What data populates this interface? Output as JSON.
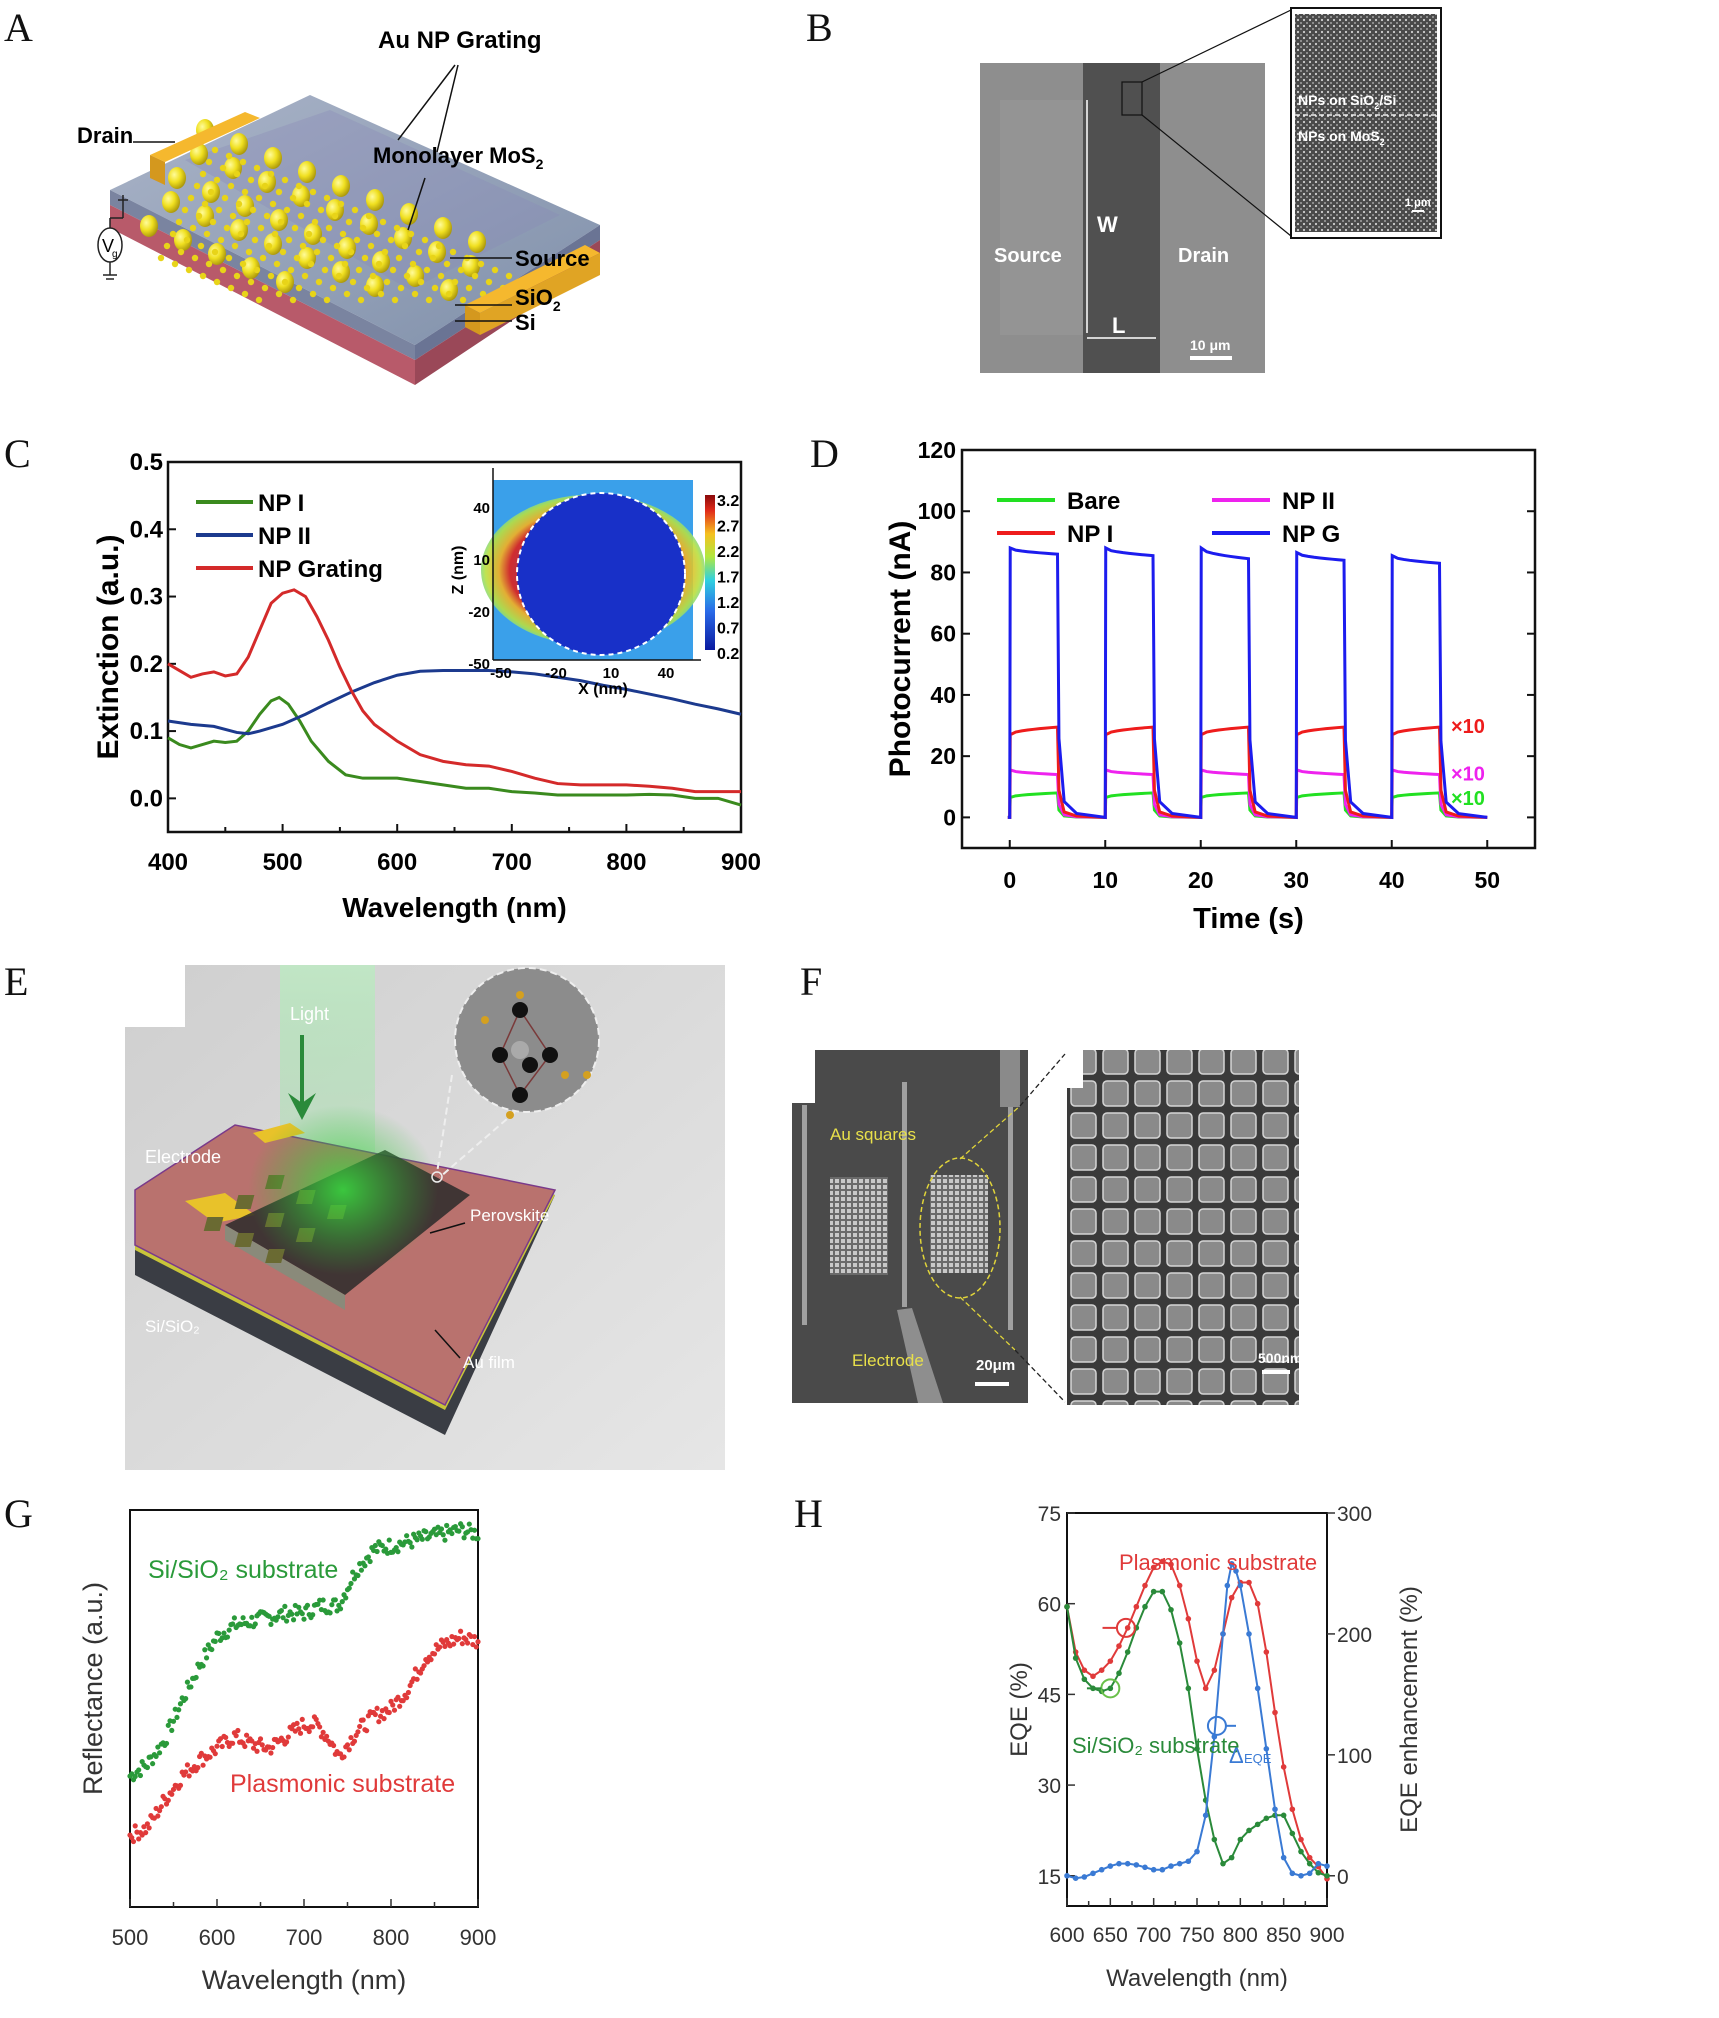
{
  "panels": {
    "A": {
      "letter": "A",
      "labels": {
        "grating": "Au NP Grating",
        "drain": "Drain",
        "monolayer": "Monolayer MoS",
        "monolayer_sub": "2",
        "source": "Source",
        "sio2": "SiO",
        "sio2_sub": "2",
        "si": "Si",
        "vg": "V",
        "vg_sub": "g"
      }
    },
    "B": {
      "letter": "B",
      "labels": {
        "source": "Source",
        "drain": "Drain",
        "w": "W",
        "l": "L",
        "scale": "10 μm",
        "inset_top": "NPs on SiO",
        "inset_top_sub": "2",
        "inset_top_tail": "/Si",
        "inset_bottom": "NPs on MoS",
        "inset_bottom_sub": "2",
        "inset_scale": "1 μm"
      }
    },
    "C": {
      "letter": "C"
    },
    "D": {
      "letter": "D"
    },
    "E": {
      "letter": "E",
      "labels": {
        "light": "Light",
        "electrode": "Electrode",
        "perovskite": "Perovskite",
        "substrate": "Si/SiO₂",
        "au_film": "Au film"
      }
    },
    "F": {
      "letter": "F",
      "labels": {
        "au_squares": "Au squares",
        "electrode": "Electrode",
        "scale_left": "20μm",
        "scale_right": "500nm"
      }
    },
    "G": {
      "letter": "G"
    },
    "H": {
      "letter": "H"
    }
  },
  "chart_data": [
    {
      "id": "C",
      "type": "line",
      "title": "",
      "xlabel": "Wavelength (nm)",
      "ylabel": "Extinction (a.u.)",
      "xlim": [
        400,
        900
      ],
      "ylim": [
        -0.05,
        0.5
      ],
      "xticks": [
        400,
        500,
        600,
        700,
        800,
        900
      ],
      "yticks": [
        0.0,
        0.1,
        0.2,
        0.3,
        0.4,
        0.5
      ],
      "ytick_labels": [
        "0.0",
        "0.1",
        "0.2",
        "0.3",
        "0.4",
        "0.5"
      ],
      "legend": "top-left",
      "series": [
        {
          "name": "NP I",
          "color": "#3a8a1e",
          "x": [
            400,
            410,
            420,
            430,
            440,
            450,
            460,
            470,
            480,
            490,
            497,
            505,
            515,
            525,
            540,
            555,
            570,
            585,
            600,
            620,
            640,
            660,
            680,
            700,
            720,
            740,
            760,
            780,
            800,
            820,
            840,
            860,
            880,
            900
          ],
          "y": [
            0.09,
            0.08,
            0.075,
            0.08,
            0.085,
            0.083,
            0.085,
            0.1,
            0.125,
            0.145,
            0.15,
            0.14,
            0.115,
            0.085,
            0.055,
            0.035,
            0.03,
            0.03,
            0.03,
            0.025,
            0.02,
            0.015,
            0.015,
            0.01,
            0.008,
            0.005,
            0.005,
            0.005,
            0.005,
            0.006,
            0.005,
            0.0,
            0.0,
            -0.01
          ]
        },
        {
          "name": "NP II",
          "color": "#1c3a8e",
          "x": [
            400,
            420,
            440,
            460,
            470,
            480,
            500,
            520,
            540,
            560,
            580,
            600,
            620,
            640,
            660,
            680,
            700,
            720,
            740,
            760,
            780,
            800,
            820,
            840,
            860,
            880,
            900
          ],
          "y": [
            0.115,
            0.11,
            0.107,
            0.098,
            0.096,
            0.1,
            0.11,
            0.125,
            0.142,
            0.158,
            0.172,
            0.183,
            0.189,
            0.19,
            0.19,
            0.19,
            0.188,
            0.185,
            0.18,
            0.175,
            0.168,
            0.162,
            0.155,
            0.148,
            0.14,
            0.133,
            0.125
          ]
        },
        {
          "name": "NP Grating",
          "color": "#d42a2a",
          "x": [
            400,
            410,
            420,
            430,
            440,
            450,
            460,
            470,
            480,
            490,
            500,
            510,
            520,
            530,
            540,
            550,
            560,
            570,
            580,
            600,
            620,
            640,
            660,
            680,
            700,
            720,
            740,
            760,
            780,
            800,
            820,
            840,
            860,
            880,
            900
          ],
          "y": [
            0.2,
            0.19,
            0.18,
            0.185,
            0.188,
            0.182,
            0.185,
            0.21,
            0.25,
            0.29,
            0.305,
            0.31,
            0.3,
            0.27,
            0.235,
            0.195,
            0.16,
            0.13,
            0.11,
            0.085,
            0.065,
            0.055,
            0.05,
            0.048,
            0.04,
            0.03,
            0.022,
            0.02,
            0.02,
            0.02,
            0.018,
            0.015,
            0.01,
            0.01,
            0.01
          ]
        }
      ],
      "inset": {
        "type": "heatmap",
        "xlabel": "X (nm)",
        "ylabel": "Z (nm)",
        "xticks": [
          "-50",
          "-20",
          "10",
          "40"
        ],
        "yticks": [
          "40",
          "10",
          "-20",
          "-50"
        ],
        "colorbar_ticks": [
          "3.2",
          "2.7",
          "2.2",
          "1.7",
          "1.2",
          "0.7",
          "0.2"
        ],
        "colorbar_range": [
          0.2,
          3.2
        ]
      }
    },
    {
      "id": "D",
      "type": "line",
      "title": "",
      "xlabel": "Time (s)",
      "ylabel": "Photocurrent (nA)",
      "xlim": [
        -5,
        55
      ],
      "ylim": [
        -10,
        120
      ],
      "xticks": [
        0,
        10,
        20,
        30,
        40,
        50
      ],
      "yticks": [
        0,
        20,
        40,
        60,
        80,
        100,
        120
      ],
      "legend": "top",
      "on_periods": [
        [
          0,
          5
        ],
        [
          10,
          15
        ],
        [
          20,
          25
        ],
        [
          30,
          35
        ],
        [
          40,
          45
        ]
      ],
      "series": [
        {
          "name": "Bare",
          "color": "#22e022",
          "on_level_start": 6.5,
          "on_level_end": 8,
          "annotation": "×10"
        },
        {
          "name": "NP II",
          "color": "#ee22ee",
          "on_level_start": 15.5,
          "on_level_end": 14,
          "annotation": "×10"
        },
        {
          "name": "NP I",
          "color": "#ee1c1c",
          "on_level_start": 27,
          "on_level_end": 29.5,
          "annotation": "×10"
        },
        {
          "name": "NP G",
          "color": "#1c1cee",
          "on_level_start": [
            88,
            88,
            88,
            86.5,
            85.5
          ],
          "on_level_end": [
            86,
            85.5,
            84.5,
            84,
            83
          ],
          "annotation": ""
        }
      ]
    },
    {
      "id": "G",
      "type": "scatter",
      "title": "",
      "xlabel": "Wavelength (nm)",
      "ylabel": "Reflectance (a.u.)",
      "xlim": [
        500,
        900
      ],
      "ylim": [
        0,
        1
      ],
      "xticks": [
        500,
        600,
        700,
        800,
        900
      ],
      "yticks": [],
      "legend": "inline",
      "series": [
        {
          "name": "Si/SiO2 substrate",
          "label": "Si/SiO₂ substrate",
          "color": "#2a9a3a",
          "x": [
            500,
            520,
            540,
            560,
            580,
            600,
            620,
            640,
            660,
            680,
            700,
            720,
            740,
            760,
            780,
            800,
            820,
            840,
            860,
            880,
            900
          ],
          "y": [
            0.33,
            0.36,
            0.42,
            0.52,
            0.61,
            0.68,
            0.71,
            0.72,
            0.73,
            0.74,
            0.74,
            0.76,
            0.76,
            0.85,
            0.9,
            0.91,
            0.92,
            0.93,
            0.94,
            0.95,
            0.94
          ]
        },
        {
          "name": "Plasmonic substrate",
          "label": "Plasmonic substrate",
          "color": "#e03a3a",
          "x": [
            500,
            520,
            540,
            560,
            580,
            600,
            620,
            640,
            660,
            680,
            700,
            715,
            730,
            740,
            760,
            780,
            800,
            820,
            840,
            860,
            880,
            900
          ],
          "y": [
            0.18,
            0.2,
            0.27,
            0.33,
            0.37,
            0.4,
            0.43,
            0.41,
            0.4,
            0.43,
            0.46,
            0.46,
            0.42,
            0.38,
            0.44,
            0.48,
            0.5,
            0.55,
            0.63,
            0.66,
            0.68,
            0.67
          ]
        }
      ]
    },
    {
      "id": "H",
      "type": "line",
      "title": "",
      "xlabel": "Wavelength (nm)",
      "ylabel": "EQE (%)",
      "ylabel_right": "EQE enhancement (%)",
      "xlim": [
        600,
        900
      ],
      "ylim": [
        10,
        75
      ],
      "ylim_right": [
        -25,
        300
      ],
      "xticks": [
        600,
        650,
        700,
        750,
        800,
        850,
        900
      ],
      "yticks": [
        15,
        30,
        45,
        60,
        75
      ],
      "yticks_right": [
        0,
        100,
        200,
        300
      ],
      "legend": "inline",
      "annotations": [
        "Plasmonic substrate",
        "Si/SiO₂ substrate",
        "Δ",
        "EQE"
      ],
      "series": [
        {
          "name": "Plasmonic substrate",
          "axis": "left",
          "color": "#e03a3a",
          "x": [
            600,
            610,
            620,
            630,
            640,
            650,
            660,
            670,
            680,
            690,
            700,
            710,
            720,
            730,
            740,
            750,
            760,
            770,
            780,
            790,
            800,
            810,
            820,
            830,
            840,
            850,
            860,
            870,
            880,
            890,
            900
          ],
          "y": [
            59.5,
            52,
            49,
            48,
            49,
            50.5,
            53,
            56,
            59.5,
            63,
            66,
            67,
            66.5,
            63,
            57.5,
            50.5,
            46,
            49,
            55,
            61,
            63.5,
            63.5,
            60,
            52,
            42,
            33,
            26,
            21,
            18,
            16.5,
            14.5
          ]
        },
        {
          "name": "Si/SiO2 substrate",
          "axis": "left",
          "color": "#2a8a3a",
          "x": [
            600,
            610,
            620,
            630,
            640,
            650,
            660,
            670,
            680,
            690,
            700,
            710,
            720,
            730,
            740,
            750,
            760,
            770,
            780,
            790,
            800,
            810,
            820,
            830,
            840,
            850,
            860,
            870,
            880,
            890,
            900
          ],
          "y": [
            59.5,
            51,
            47.5,
            46,
            45.5,
            46,
            48.5,
            52,
            56,
            59.5,
            62,
            62,
            59,
            53.5,
            46,
            36,
            27.5,
            21,
            17,
            18,
            21,
            22.5,
            23.5,
            24.5,
            25,
            25,
            22,
            19,
            17,
            15.5,
            15
          ]
        },
        {
          "name": "ΔEQE",
          "axis": "right",
          "color": "#3a7ad4",
          "x": [
            600,
            610,
            620,
            630,
            640,
            650,
            660,
            670,
            680,
            690,
            700,
            710,
            720,
            730,
            740,
            750,
            760,
            770,
            780,
            785,
            790,
            795,
            800,
            810,
            820,
            830,
            840,
            850,
            860,
            870,
            880,
            890,
            900
          ],
          "y": [
            0,
            -2,
            -1,
            2,
            5,
            8,
            10,
            10,
            9,
            7,
            5,
            5,
            8,
            10,
            12,
            20,
            50,
            115,
            200,
            240,
            258,
            252,
            240,
            200,
            155,
            105,
            55,
            15,
            2,
            0,
            2,
            10,
            8
          ]
        }
      ]
    }
  ]
}
